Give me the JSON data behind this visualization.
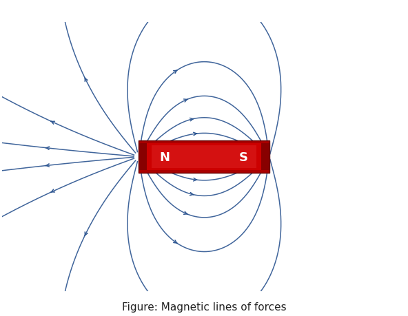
{
  "fig_width": 5.92,
  "fig_height": 4.6,
  "dpi": 100,
  "bg_color": "#ffffff",
  "line_color": "#2B5490",
  "line_alpha": 0.9,
  "line_width": 1.1,
  "magnet_xmin": -1.55,
  "magnet_xmax": 1.55,
  "magnet_ymin": -0.38,
  "magnet_ymax": 0.38,
  "N_label": "N",
  "S_label": "S",
  "label_color": "#ffffff",
  "label_fontsize": 13,
  "caption": "Figure: Magnetic lines of forces",
  "caption_fontsize": 11,
  "xlim": [
    -4.8,
    4.8
  ],
  "ylim": [
    -3.2,
    3.2
  ]
}
